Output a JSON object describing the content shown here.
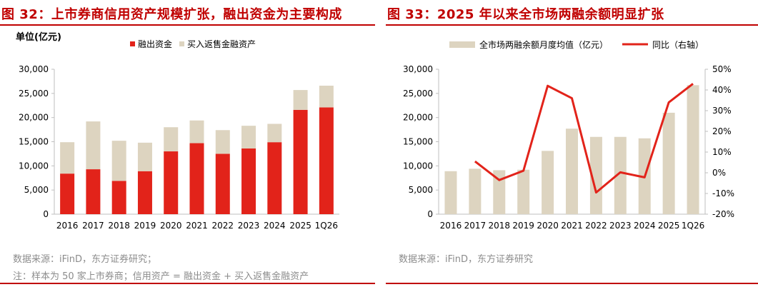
{
  "colors": {
    "accent": "#c00000",
    "red_series": "#e2231a",
    "beige_series": "#ddd4c0",
    "line_series": "#e2231a",
    "axis": "#bfbfbf"
  },
  "left": {
    "title": "图 32：上市券商信用资产规模扩张，融出资金为主要构成",
    "notes": [
      "数据来源：iFinD，东方证券研究；",
      "注：样本为 50 家上市券商；信用资产 = 融出资金 + 买入返售金融资产"
    ]
  },
  "right": {
    "title": "图 33：2025 年以来全市场两融余额明显扩张",
    "notes": [
      "数据来源：iFinD，东方证券研究"
    ]
  },
  "chart_data": [
    {
      "type": "bar",
      "stacked": true,
      "unit_label": "单位(亿元)",
      "categories": [
        "2016",
        "2017",
        "2018",
        "2019",
        "2020",
        "2021",
        "2022",
        "2023",
        "2024",
        "2025",
        "1Q26"
      ],
      "series": [
        {
          "name": "融出资金",
          "values": [
            8400,
            9300,
            6900,
            8900,
            13000,
            14700,
            12500,
            13600,
            14900,
            21600,
            22100
          ]
        },
        {
          "name": "买入返售金融资产",
          "values": [
            6500,
            9900,
            8300,
            5900,
            5000,
            4700,
            4900,
            4700,
            3800,
            4100,
            4500
          ]
        }
      ],
      "ylim": [
        0,
        30000
      ],
      "yticks": [
        "0",
        "5,000",
        "10,000",
        "15,000",
        "20,000",
        "25,000",
        "30,000"
      ],
      "legend_position": "top-left",
      "grid": false
    },
    {
      "type": "bar+line",
      "categories": [
        "2016",
        "2017",
        "2018",
        "2019",
        "2020",
        "2021",
        "2022",
        "2023",
        "2024",
        "2025",
        "1Q26"
      ],
      "series": [
        {
          "name": "全市场两融余额月度均值（亿元）",
          "type": "bar",
          "axis": "left",
          "values": [
            8900,
            9400,
            9100,
            9200,
            13100,
            17700,
            16000,
            16000,
            15700,
            21000,
            26700
          ]
        },
        {
          "name": "同比（右轴）",
          "type": "line",
          "axis": "right",
          "values": [
            null,
            5.5,
            -3.5,
            1.0,
            42,
            36,
            -9.5,
            0.2,
            -2.2,
            34,
            43
          ]
        }
      ],
      "ylim_left": [
        0,
        30000
      ],
      "yticks_left": [
        "0",
        "5,000",
        "10,000",
        "15,000",
        "20,000",
        "25,000",
        "30,000"
      ],
      "ylim_right": [
        -20,
        50
      ],
      "yticks_right": [
        "-20%",
        "-10%",
        "0%",
        "10%",
        "20%",
        "30%",
        "40%",
        "50%"
      ],
      "legend_position": "top",
      "grid": false
    }
  ]
}
